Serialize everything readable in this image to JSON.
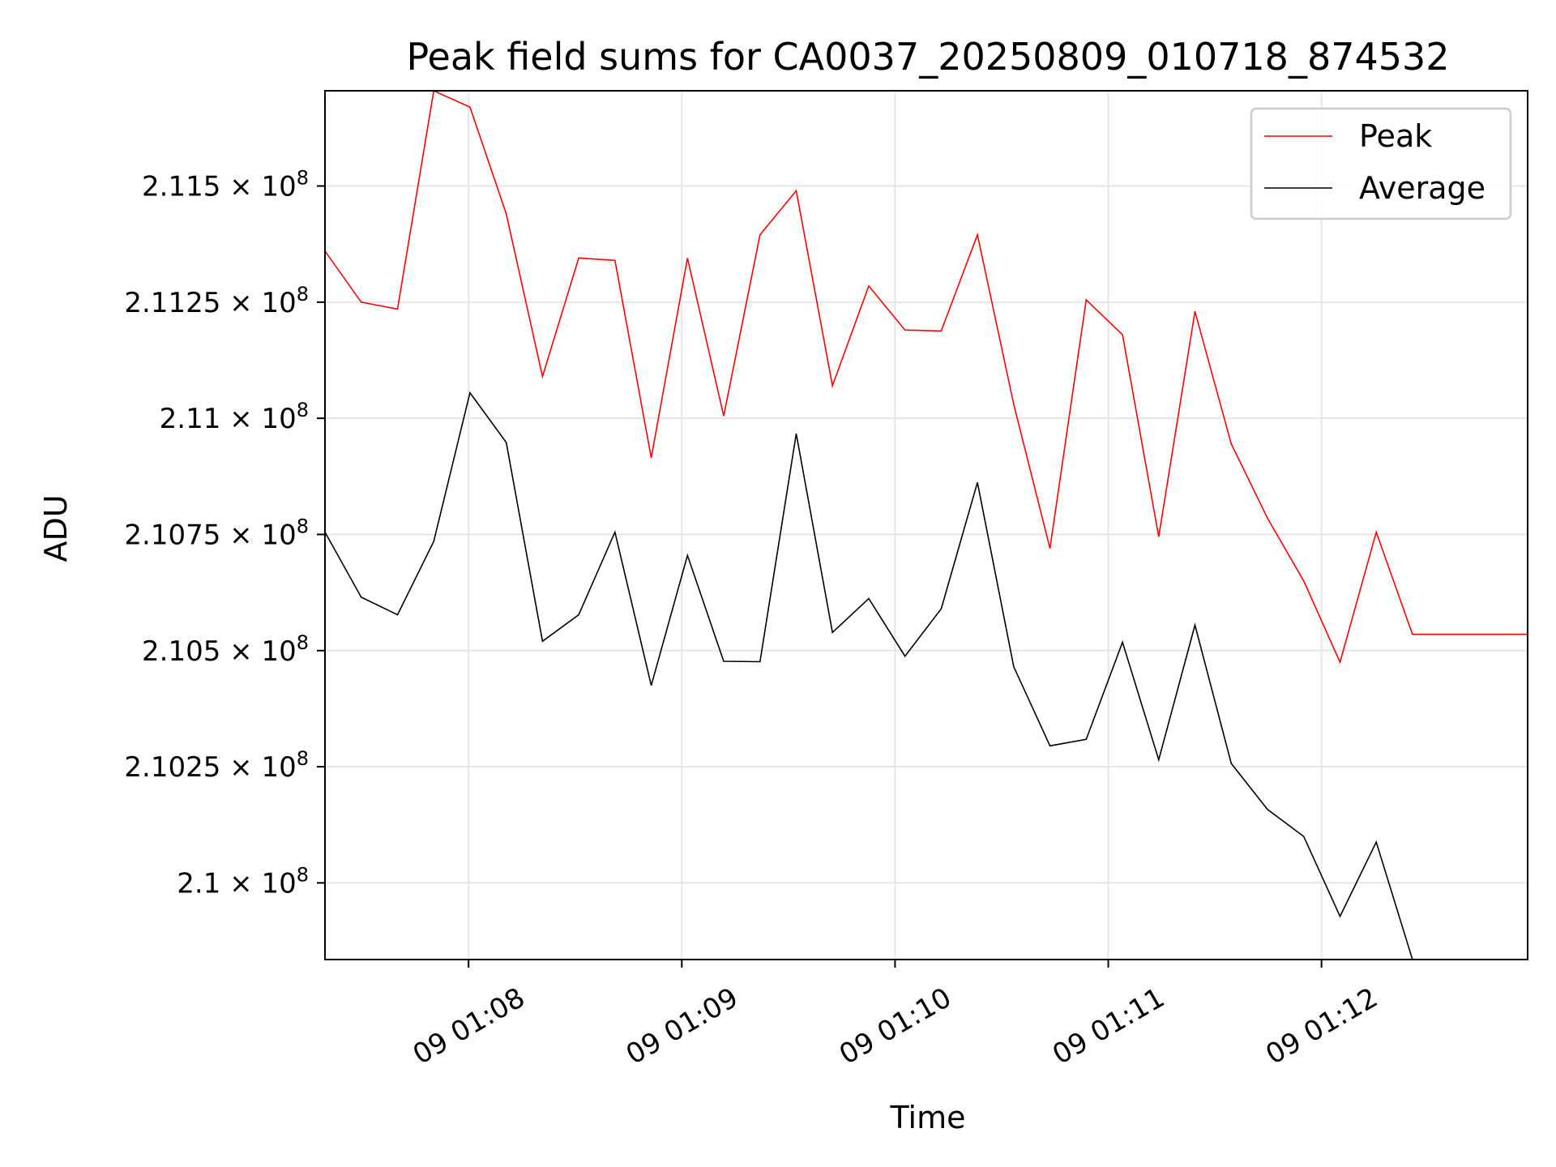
{
  "chart_data": {
    "type": "line",
    "title": "Peak field sums for CA0037_20250809_010718_874532",
    "xlabel": "Time",
    "ylabel": "ADU",
    "x_tick_labels": [
      "09 01:08",
      "09 01:09",
      "09 01:10",
      "09 01:11",
      "09 01:12"
    ],
    "x_tick_seconds": [
      8,
      68,
      128,
      188,
      248
    ],
    "y_ticks": [
      {
        "value": 210000000,
        "mantissa": "2.1"
      },
      {
        "value": 210250000,
        "mantissa": "2.1025"
      },
      {
        "value": 210500000,
        "mantissa": "2.105"
      },
      {
        "value": 210750000,
        "mantissa": "2.1075"
      },
      {
        "value": 211000000,
        "mantissa": "2.11"
      },
      {
        "value": 211250000,
        "mantissa": "2.1125"
      },
      {
        "value": 211500000,
        "mantissa": "2.115"
      }
    ],
    "y_tick_multiplier": "10",
    "y_tick_exponent": "8",
    "xlim_seconds": [
      -32.4,
      306
    ],
    "ylim": [
      209835000,
      211705000
    ],
    "grid": true,
    "legend_position": "top-right",
    "x_seconds": [
      -32.4,
      -22.2,
      -12.0,
      -1.8,
      8.4,
      18.6,
      28.8,
      39.0,
      49.2,
      59.4,
      69.6,
      79.8,
      90.0,
      100.2,
      110.4,
      120.6,
      130.8,
      141.0,
      151.2,
      161.4,
      171.6,
      181.8,
      192.0,
      202.2,
      212.4,
      222.6,
      232.8,
      243.0,
      253.2,
      263.4,
      273.6,
      283.8,
      294.0,
      306.0
    ],
    "series": [
      {
        "name": "Peak",
        "color": "#ff0000",
        "values": [
          211360000,
          211250000,
          211235000,
          211705000,
          211670000,
          211440000,
          211090000,
          211345000,
          211340000,
          210915000,
          211345000,
          211005000,
          211395000,
          211490000,
          211070000,
          211285000,
          211190000,
          211188000,
          211395000,
          211030000,
          210720000,
          211255000,
          211180000,
          210745000,
          211230000,
          210945000,
          210785000,
          210650000,
          210475000,
          210755000,
          210535000,
          210535000,
          210535000,
          210535000
        ]
      },
      {
        "name": "Average",
        "color": "#000000",
        "values": [
          210755000,
          210615000,
          210577000,
          210735000,
          211055000,
          210948000,
          210520000,
          210577000,
          210755000,
          210425000,
          210705000,
          210477000,
          210476000,
          210967000,
          210539000,
          210612000,
          210488000,
          210590000,
          210862000,
          210465000,
          210295000,
          210309000,
          210518000,
          210265000,
          210555000,
          210257000,
          210158000,
          210100000,
          209928000,
          210088000,
          209835000,
          209835000,
          209835000,
          209835000
        ]
      }
    ]
  }
}
